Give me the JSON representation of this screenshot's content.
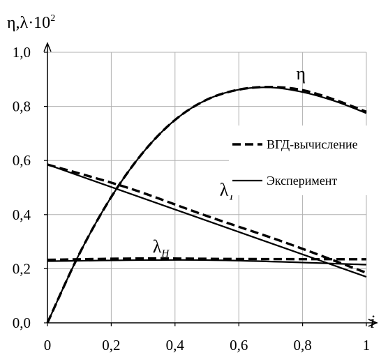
{
  "chart_data": {
    "type": "line",
    "ylabel": "η,λ·10²",
    "ylabel_parts": {
      "main": "η,λ·10",
      "sup": "2"
    },
    "xlabel": "i",
    "xlim": [
      0,
      1
    ],
    "ylim": [
      0,
      1.0
    ],
    "x_ticks": [
      0,
      0.2,
      0.4,
      0.6,
      0.8,
      1
    ],
    "x_tick_labels": [
      "0",
      "0,2",
      "0,4",
      "0,6",
      "0,8",
      "1"
    ],
    "y_ticks": [
      0,
      0.2,
      0.4,
      0.6,
      0.8,
      1.0
    ],
    "y_tick_labels": [
      "0,0",
      "0,2",
      "0,4",
      "0,6",
      "0,8",
      "1,0"
    ],
    "grid": true,
    "legend": [
      {
        "label": "ВГД-вычисление",
        "style": "dashed"
      },
      {
        "label": "Эксперимент",
        "style": "solid"
      }
    ],
    "annotations": [
      {
        "text": "η",
        "sub": "",
        "x": 0.78,
        "y": 0.9
      },
      {
        "text": "λ",
        "sub": "T",
        "x": 0.54,
        "y": 0.47
      },
      {
        "text": "λ",
        "sub": "H",
        "x": 0.33,
        "y": 0.26
      }
    ],
    "series": [
      {
        "style": "solid",
        "x": [
          0,
          0.1,
          0.2,
          0.3,
          0.4,
          0.5,
          0.6,
          0.7,
          0.8,
          0.9,
          1.0
        ],
        "y": [
          0,
          0.255,
          0.465,
          0.63,
          0.75,
          0.825,
          0.862,
          0.87,
          0.853,
          0.82,
          0.775
        ]
      },
      {
        "style": "dashed",
        "x": [
          0,
          0.1,
          0.2,
          0.3,
          0.4,
          0.5,
          0.6,
          0.7,
          0.8,
          0.9,
          1.0
        ],
        "y": [
          0,
          0.255,
          0.465,
          0.63,
          0.75,
          0.825,
          0.862,
          0.872,
          0.86,
          0.825,
          0.78
        ]
      },
      {
        "style": "solid",
        "x": [
          0,
          1
        ],
        "y": [
          0.585,
          0.17
        ]
      },
      {
        "style": "dashed",
        "x": [
          0,
          0.25,
          0.5,
          0.75,
          1
        ],
        "y": [
          0.585,
          0.5,
          0.395,
          0.295,
          0.185
        ]
      },
      {
        "style": "solid",
        "x": [
          0,
          0.5,
          1
        ],
        "y": [
          0.228,
          0.232,
          0.215
        ]
      },
      {
        "style": "dashed",
        "x": [
          0,
          0.3,
          0.6,
          1
        ],
        "y": [
          0.233,
          0.238,
          0.236,
          0.235
        ]
      }
    ]
  }
}
